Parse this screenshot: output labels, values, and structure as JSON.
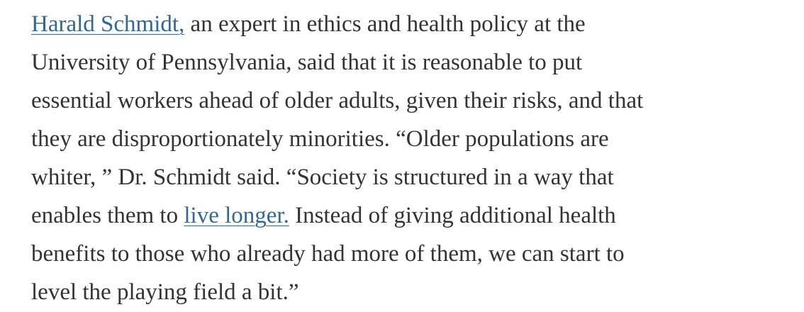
{
  "paragraph": {
    "lines": [
      [
        {
          "text": "Harald Schmidt,",
          "link": true
        },
        {
          "text": " an expert in ethics and health policy at the"
        }
      ],
      [
        {
          "text": "University of Pennsylvania, said that it is reasonable to put"
        }
      ],
      [
        {
          "text": "essential workers ahead of older adults, given their risks, and that"
        }
      ],
      [
        {
          "text": "they are disproportionately minorities. “Older populations are"
        }
      ],
      [
        {
          "text": "whiter, ” Dr. Schmidt said. “Society is structured in a way that"
        }
      ],
      [
        {
          "text": "enables them to "
        },
        {
          "text": "live longer.",
          "link": true
        },
        {
          "text": " Instead of giving additional health"
        }
      ],
      [
        {
          "text": "benefits to those who already had more of them, we can start to"
        }
      ],
      [
        {
          "text": "level the playing field a bit.”"
        }
      ]
    ]
  }
}
